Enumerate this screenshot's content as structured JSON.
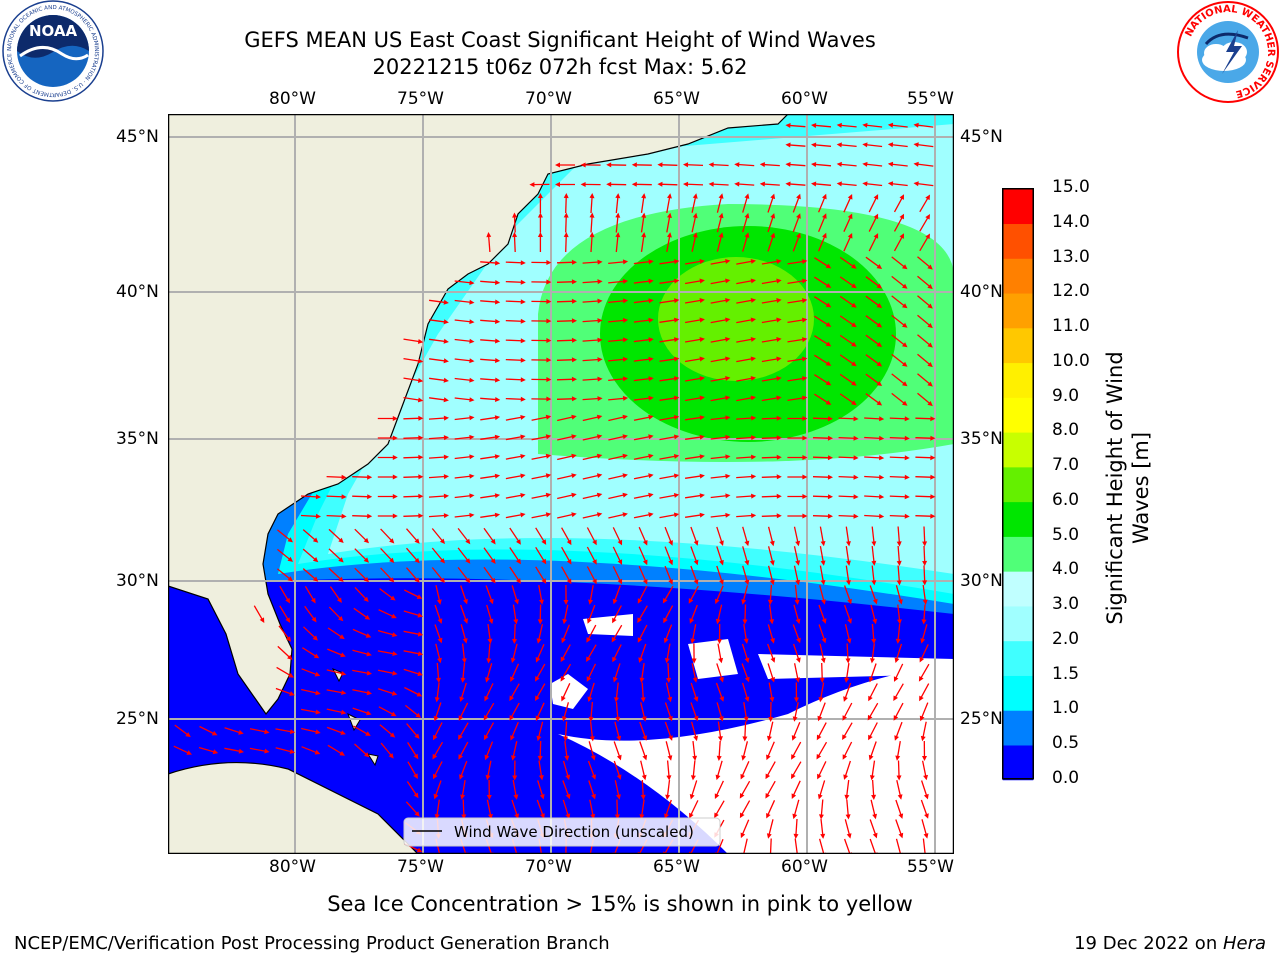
{
  "title": {
    "line1": "GEFS MEAN US East Coast Significant Height of Wind Waves",
    "line2": "20221215 t06z 072h fcst   Max: 5.62"
  },
  "logos": {
    "noaa": {
      "text": "NOAA",
      "ring_text": "NATIONAL OCEANIC AND ATMOSPHERIC ADMINISTRATION · U.S. DEPARTMENT OF COMMERCE"
    },
    "nws": {
      "ring_text": "NATIONAL WEATHER SERVICE"
    }
  },
  "map": {
    "lon_range": [
      -85,
      -54.3
    ],
    "lat_range": [
      20.5,
      46
    ],
    "lon_ticks": [
      "80°W",
      "75°W",
      "70°W",
      "65°W",
      "60°W",
      "55°W"
    ],
    "lon_tick_values": [
      -80,
      -75,
      -70,
      -65,
      -60,
      -55
    ],
    "lat_ticks": [
      "45°N",
      "40°N",
      "35°N",
      "30°N",
      "25°N"
    ],
    "lat_tick_values": [
      45,
      40,
      35,
      30,
      25
    ],
    "legend_text": "Wind Wave Direction (unscaled)",
    "arrow_color": "#ff0000",
    "land_color": "#efefde",
    "gridlines": true
  },
  "colorbar": {
    "label": "Significant Height of Wind Waves [m]",
    "label_line1": "Significant Height of Wind",
    "label_line2": "Waves [m]",
    "levels": [
      "0.0",
      "0.5",
      "1.0",
      "1.5",
      "2.0",
      "3.0",
      "4.0",
      "5.0",
      "6.0",
      "7.0",
      "8.0",
      "9.0",
      "10.0",
      "11.0",
      "12.0",
      "13.0",
      "14.0",
      "15.0"
    ],
    "colors": [
      "#0000ff",
      "#0080ff",
      "#00ffff",
      "#40ffff",
      "#a0ffff",
      "#c0ffff",
      "#50ff78",
      "#00e600",
      "#64f000",
      "#c8ff00",
      "#ffff00",
      "#fff000",
      "#ffc800",
      "#ffa000",
      "#ff8000",
      "#ff5000",
      "#ff0000"
    ]
  },
  "footer": {
    "note": "Sea Ice Concentration > 15% is shown in pink to yellow",
    "left": "NCEP/EMC/Verification Post Processing Product Generation Branch",
    "right_prefix": "19 Dec 2022 on ",
    "right_host": "Hera"
  }
}
